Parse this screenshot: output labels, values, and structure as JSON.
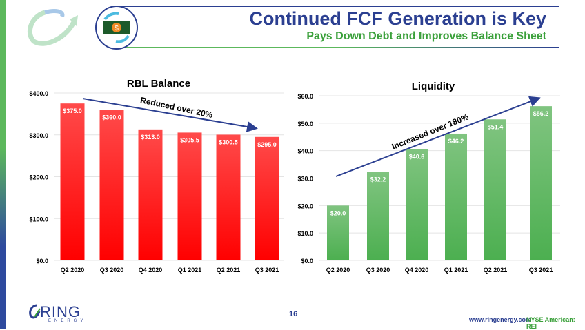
{
  "header": {
    "title": "Continued FCF Generation is Key",
    "subtitle": "Pays Down Debt and Improves Balance Sheet"
  },
  "footer": {
    "page": "16",
    "website": "www.ringenergy.com",
    "ticker": "NYSE American: REI",
    "logo_text": "RING",
    "logo_sub": "ENERGY"
  },
  "chart_data": [
    {
      "type": "bar",
      "title": "RBL Balance",
      "categories": [
        "Q2 2020",
        "Q3 2020",
        "Q4 2020",
        "Q1 2021",
        "Q2 2021",
        "Q3 2021"
      ],
      "values": [
        375.0,
        360.0,
        313.0,
        305.5,
        300.5,
        295.0
      ],
      "data_labels": [
        "$375.0",
        "$360.0",
        "$313.0",
        "$305.5",
        "$300.5",
        "$295.0"
      ],
      "ylim": [
        0,
        400
      ],
      "yticks": [
        "$0.0",
        "$100.0",
        "$200.0",
        "$300.0",
        "$400.0"
      ],
      "annotation": "Reduced over 20%",
      "color": "#ff0000",
      "grid": true
    },
    {
      "type": "bar",
      "title": "Liquidity",
      "categories": [
        "Q2 2020",
        "Q3 2020",
        "Q4 2020",
        "Q1 2021",
        "Q2 2021",
        "Q3 2021"
      ],
      "values": [
        20.0,
        32.2,
        40.6,
        46.2,
        51.4,
        56.2
      ],
      "data_labels": [
        "$20.0",
        "$32.2",
        "$40.6",
        "$46.2",
        "$51.4",
        "$56.2"
      ],
      "ylim": [
        0,
        60
      ],
      "yticks": [
        "$0.0",
        "$10.0",
        "$20.0",
        "$30.0",
        "$40.0",
        "$50.0",
        "$60.0"
      ],
      "annotation": "Increased over 180%",
      "color": "#5cb85c",
      "grid": true
    }
  ]
}
